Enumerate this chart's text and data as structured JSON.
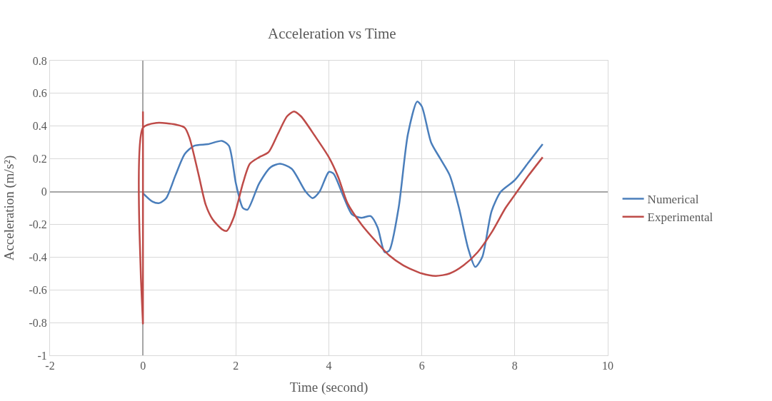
{
  "chart_data": {
    "type": "line",
    "title": "Acceleration vs Time",
    "xlabel": "Time (second)",
    "ylabel": "Acceleration (m/s²)",
    "xlim": [
      -2,
      10
    ],
    "xticks": [
      -2,
      0,
      2,
      4,
      6,
      8,
      10
    ],
    "ylim": [
      -1,
      0.8
    ],
    "yticks": [
      -1,
      -0.8,
      -0.6,
      -0.4,
      -0.2,
      0,
      0.2,
      0.4,
      0.6,
      0.8
    ],
    "grid": true,
    "legend": "right",
    "marker": "none",
    "line_style": "solid",
    "series": [
      {
        "name": "Numerical",
        "color": "#4a7ebb",
        "x": [
          0,
          0.2,
          0.35,
          0.5,
          0.7,
          0.9,
          1.1,
          1.4,
          1.7,
          1.85,
          2.0,
          2.15,
          2.25,
          2.5,
          2.75,
          2.95,
          3.2,
          3.5,
          3.65,
          3.8,
          4.0,
          4.1,
          4.3,
          4.5,
          4.7,
          4.9,
          5.05,
          5.2,
          5.3,
          5.5,
          5.7,
          5.9,
          6.0,
          6.2,
          6.4,
          6.6,
          6.8,
          7.0,
          7.15,
          7.3,
          7.5,
          7.7,
          8.0,
          8.3,
          8.6
        ],
        "values": [
          -0.01,
          -0.06,
          -0.07,
          -0.04,
          0.1,
          0.23,
          0.28,
          0.29,
          0.31,
          0.28,
          0.05,
          -0.1,
          -0.11,
          0.05,
          0.15,
          0.17,
          0.14,
          0.0,
          -0.04,
          0.0,
          0.12,
          0.11,
          -0.02,
          -0.14,
          -0.16,
          -0.15,
          -0.22,
          -0.37,
          -0.36,
          -0.1,
          0.35,
          0.55,
          0.52,
          0.3,
          0.2,
          0.1,
          -0.1,
          -0.35,
          -0.46,
          -0.4,
          -0.12,
          0.0,
          0.07,
          0.18,
          0.29
        ]
      },
      {
        "name": "Experimental",
        "color": "#be4b48",
        "x": [
          0,
          0,
          0,
          0,
          0.3,
          0.7,
          0.9,
          1.0,
          1.2,
          1.35,
          1.5,
          1.7,
          1.8,
          1.95,
          2.15,
          2.3,
          2.5,
          2.7,
          2.9,
          3.1,
          3.25,
          3.4,
          3.7,
          4.0,
          4.2,
          4.4,
          4.7,
          5.0,
          5.3,
          5.6,
          6.0,
          6.3,
          6.6,
          6.9,
          7.2,
          7.5,
          7.8,
          8.0,
          8.3,
          8.6
        ],
        "values": [
          0.38,
          0.49,
          -0.81,
          0.39,
          0.42,
          0.41,
          0.39,
          0.33,
          0.1,
          -0.08,
          -0.17,
          -0.23,
          -0.24,
          -0.16,
          0.05,
          0.17,
          0.21,
          0.24,
          0.35,
          0.46,
          0.49,
          0.46,
          0.34,
          0.21,
          0.09,
          -0.07,
          -0.2,
          -0.3,
          -0.39,
          -0.45,
          -0.5,
          -0.515,
          -0.5,
          -0.45,
          -0.37,
          -0.25,
          -0.1,
          -0.02,
          0.1,
          0.21
        ]
      }
    ]
  }
}
